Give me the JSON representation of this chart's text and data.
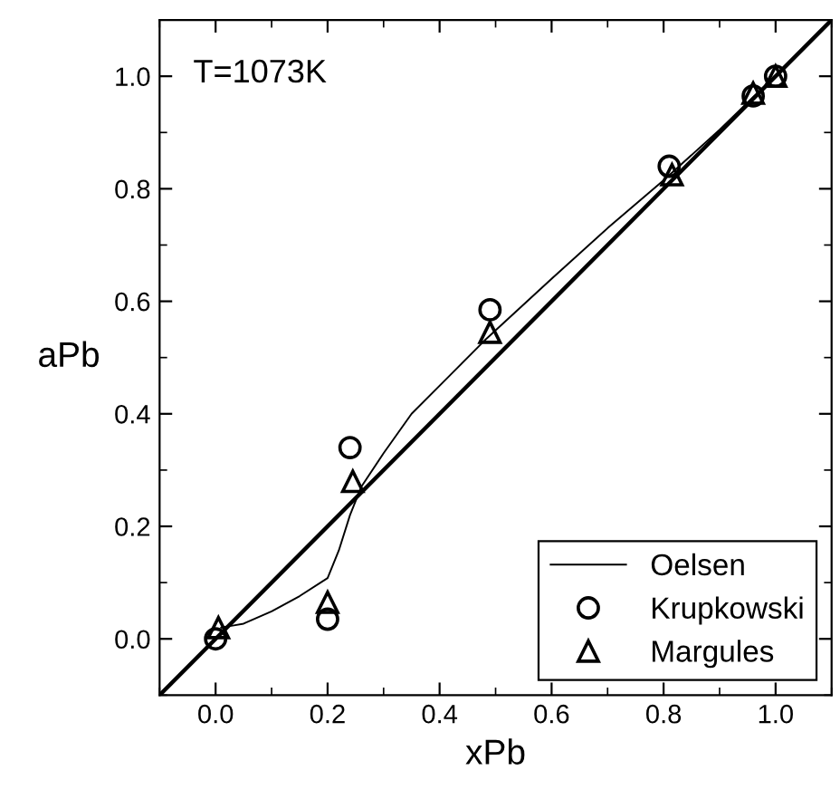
{
  "chart_data": {
    "type": "scatter",
    "xlabel": "xPb",
    "ylabel": "aPb",
    "annotations": [
      "T=1073K"
    ],
    "series": [
      {
        "type": "line",
        "color": "#000000",
        "line_style": "solid",
        "marker": "none",
        "x": [
          -0.1,
          1.1
        ],
        "values": [
          -0.1,
          1.1
        ]
      },
      {
        "name": "Oelsen",
        "type": "line",
        "color": "#000000",
        "line_style": "solid",
        "marker": "none",
        "x": [
          0.01,
          0.05,
          0.1,
          0.15,
          0.2,
          0.22,
          0.24,
          0.26,
          0.3,
          0.35,
          0.42,
          0.48,
          0.6,
          0.7,
          0.8,
          0.9,
          0.96,
          1.0
        ],
        "values": [
          0.02,
          0.027,
          0.049,
          0.076,
          0.108,
          0.157,
          0.22,
          0.27,
          0.33,
          0.4,
          0.47,
          0.53,
          0.64,
          0.73,
          0.815,
          0.905,
          0.963,
          1.0
        ]
      },
      {
        "name": "Krupkowski",
        "color": "#000000",
        "marker": "circle",
        "x": [
          0.0,
          0.2,
          0.24,
          0.49,
          0.81,
          0.96,
          1.0
        ],
        "values": [
          0.0,
          0.035,
          0.34,
          0.585,
          0.84,
          0.965,
          1.0
        ]
      },
      {
        "name": "Margules",
        "color": "#000000",
        "marker": "triangle",
        "x": [
          0.005,
          0.2,
          0.245,
          0.49,
          0.815,
          0.96,
          1.0
        ],
        "values": [
          0.02,
          0.065,
          0.28,
          0.545,
          0.825,
          0.97,
          1.0
        ]
      }
    ],
    "xlim": [
      -0.1,
      1.1
    ],
    "ylim": [
      -0.1,
      1.1
    ],
    "xticks": [
      {
        "value": 0.0,
        "label": "0.0"
      },
      0.2,
      0.4,
      0.6,
      0.8,
      {
        "value": 1.0,
        "label": "1.0"
      }
    ],
    "yticks": [
      {
        "value": 0.0,
        "label": "0.0"
      },
      0.2,
      0.4,
      0.6,
      0.8,
      {
        "value": 1.0,
        "label": "1.0"
      }
    ],
    "grid": false,
    "legend": "bottom right"
  }
}
